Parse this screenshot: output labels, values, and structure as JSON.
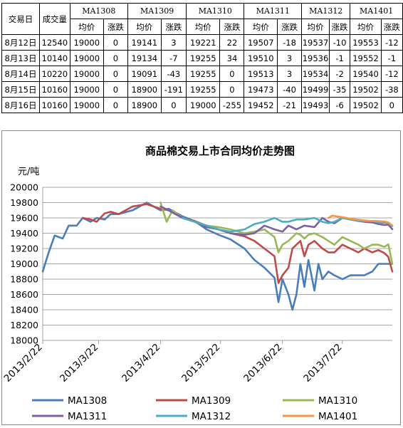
{
  "table": {
    "col_date": "交易日",
    "col_volume": "成交量",
    "contracts": [
      "MA1308",
      "MA1309",
      "MA1310",
      "MA1311",
      "MA1312",
      "MA1401"
    ],
    "sub_avg": "均价",
    "sub_change": "涨跌",
    "rows": [
      {
        "date": "8月12日",
        "volume": "12540",
        "cells": [
          "19000",
          "0",
          "19141",
          "3",
          "19221",
          "22",
          "19507",
          "-18",
          "19537",
          "-10",
          "19553",
          "-12"
        ]
      },
      {
        "date": "8月13日",
        "volume": "10140",
        "cells": [
          "19000",
          "0",
          "19134",
          "-7",
          "19255",
          "34",
          "19510",
          "3",
          "19536",
          "-1",
          "19552",
          "-1"
        ]
      },
      {
        "date": "8月14日",
        "volume": "10220",
        "cells": [
          "19000",
          "0",
          "19091",
          "-43",
          "19255",
          "0",
          "19513",
          "3",
          "19534",
          "-2",
          "19540",
          "-12"
        ]
      },
      {
        "date": "8月15日",
        "volume": "10160",
        "cells": [
          "19000",
          "0",
          "18900",
          "-191",
          "19255",
          "0",
          "19473",
          "-40",
          "19499",
          "-35",
          "19502",
          "-38"
        ]
      },
      {
        "date": "8月16日",
        "volume": "10160",
        "cells": [
          "19000",
          "0",
          "18900",
          "0",
          "19000",
          "-255",
          "19452",
          "-21",
          "19493",
          "-6",
          "19502",
          "0"
        ]
      }
    ]
  },
  "chart_data": {
    "type": "line",
    "title": "商品棉交易上市合同均价走势图",
    "ylabel": "元/吨",
    "xlabel": "",
    "ylim": [
      18000,
      20000
    ],
    "yticks": [
      18000,
      18200,
      18400,
      18600,
      18800,
      19000,
      19200,
      19400,
      19600,
      19800,
      20000
    ],
    "xlim": [
      "2013-02-22",
      "2013-08-16"
    ],
    "xticks": [
      "2013/2/22",
      "2013/3/22",
      "2013/4/22",
      "2013/5/22",
      "2013/6/22",
      "2013/7/22"
    ],
    "tick_dates": [
      "2013-02-22",
      "2013-03-22",
      "2013-04-22",
      "2013-05-22",
      "2013-06-22",
      "2013-07-22"
    ],
    "legend_position": "bottom",
    "series": [
      {
        "name": "MA1308",
        "color": "#4a7ebb",
        "x": [
          "2013-02-22",
          "2013-02-25",
          "2013-02-28",
          "2013-03-04",
          "2013-03-07",
          "2013-03-11",
          "2013-03-14",
          "2013-03-18",
          "2013-03-21",
          "2013-03-25",
          "2013-03-28",
          "2013-04-01",
          "2013-04-08",
          "2013-04-15",
          "2013-04-22",
          "2013-04-26",
          "2013-05-03",
          "2013-05-09",
          "2013-05-15",
          "2013-05-21",
          "2013-05-27",
          "2013-06-03",
          "2013-06-08",
          "2013-06-13",
          "2013-06-18",
          "2013-06-20",
          "2013-06-22",
          "2013-06-25",
          "2013-06-27",
          "2013-06-29",
          "2013-07-01",
          "2013-07-03",
          "2013-07-05",
          "2013-07-08",
          "2013-07-10",
          "2013-07-12",
          "2013-07-15",
          "2013-07-18",
          "2013-07-22",
          "2013-07-26",
          "2013-07-30",
          "2013-08-02",
          "2013-08-06",
          "2013-08-09",
          "2013-08-12",
          "2013-08-14",
          "2013-08-16"
        ],
        "y": [
          18900,
          19150,
          19370,
          19330,
          19500,
          19500,
          19600,
          19550,
          19600,
          19580,
          19650,
          19650,
          19700,
          19800,
          19700,
          19720,
          19620,
          19560,
          19450,
          19380,
          19320,
          19200,
          19050,
          18950,
          18820,
          18500,
          18800,
          18600,
          18400,
          18600,
          19000,
          18700,
          19050,
          18650,
          19000,
          18800,
          18900,
          18850,
          18800,
          18850,
          18850,
          18850,
          18900,
          19000,
          19000,
          19000,
          19000
        ]
      },
      {
        "name": "MA1309",
        "color": "#be4b48",
        "x": [
          "2013-03-14",
          "2013-03-18",
          "2013-03-21",
          "2013-03-25",
          "2013-03-28",
          "2013-04-01",
          "2013-04-08",
          "2013-04-15",
          "2013-04-22",
          "2013-04-26",
          "2013-05-03",
          "2013-05-09",
          "2013-05-15",
          "2013-05-21",
          "2013-05-27",
          "2013-06-03",
          "2013-06-08",
          "2013-06-13",
          "2013-06-18",
          "2013-06-20",
          "2013-06-22",
          "2013-06-25",
          "2013-06-27",
          "2013-06-29",
          "2013-07-01",
          "2013-07-03",
          "2013-07-05",
          "2013-07-08",
          "2013-07-12",
          "2013-07-15",
          "2013-07-18",
          "2013-07-22",
          "2013-07-26",
          "2013-07-30",
          "2013-08-02",
          "2013-08-06",
          "2013-08-09",
          "2013-08-12",
          "2013-08-14",
          "2013-08-16"
        ],
        "y": [
          19600,
          19580,
          19550,
          19660,
          19680,
          19650,
          19750,
          19780,
          19720,
          19700,
          19600,
          19560,
          19500,
          19450,
          19400,
          19360,
          19300,
          19200,
          19100,
          18750,
          18850,
          18950,
          19200,
          19250,
          19300,
          19100,
          19250,
          19300,
          19200,
          19150,
          19150,
          19250,
          19200,
          19150,
          19200,
          19150,
          19180,
          19141,
          19091,
          18900
        ]
      },
      {
        "name": "MA1310",
        "color": "#98b954",
        "x": [
          "2013-04-22",
          "2013-04-25",
          "2013-04-28",
          "2013-05-03",
          "2013-05-09",
          "2013-05-15",
          "2013-05-21",
          "2013-05-27",
          "2013-06-03",
          "2013-06-08",
          "2013-06-13",
          "2013-06-18",
          "2013-06-20",
          "2013-06-22",
          "2013-06-25",
          "2013-06-27",
          "2013-06-29",
          "2013-07-01",
          "2013-07-03",
          "2013-07-05",
          "2013-07-08",
          "2013-07-12",
          "2013-07-15",
          "2013-07-18",
          "2013-07-22",
          "2013-07-26",
          "2013-07-30",
          "2013-08-02",
          "2013-08-06",
          "2013-08-09",
          "2013-08-12",
          "2013-08-14",
          "2013-08-16"
        ],
        "y": [
          19800,
          19550,
          19700,
          19600,
          19550,
          19500,
          19480,
          19450,
          19400,
          19420,
          19450,
          19350,
          19150,
          19250,
          19300,
          19350,
          19400,
          19380,
          19330,
          19380,
          19400,
          19350,
          19300,
          19250,
          19350,
          19300,
          19250,
          19200,
          19250,
          19250,
          19221,
          19255,
          19000
        ]
      },
      {
        "name": "MA1311",
        "color": "#7d60a0",
        "x": [
          "2013-04-22",
          "2013-04-26",
          "2013-05-03",
          "2013-05-09",
          "2013-05-15",
          "2013-05-21",
          "2013-05-27",
          "2013-06-03",
          "2013-06-08",
          "2013-06-13",
          "2013-06-18",
          "2013-06-22",
          "2013-06-25",
          "2013-06-29",
          "2013-07-03",
          "2013-07-08",
          "2013-07-12",
          "2013-07-15",
          "2013-07-18",
          "2013-07-22",
          "2013-07-26",
          "2013-07-30",
          "2013-08-02",
          "2013-08-06",
          "2013-08-09",
          "2013-08-12",
          "2013-08-14",
          "2013-08-16"
        ],
        "y": [
          19750,
          19700,
          19600,
          19550,
          19480,
          19450,
          19400,
          19380,
          19400,
          19500,
          19450,
          19420,
          19500,
          19450,
          19500,
          19480,
          19600,
          19550,
          19530,
          19600,
          19580,
          19560,
          19550,
          19540,
          19520,
          19507,
          19513,
          19452
        ]
      },
      {
        "name": "MA1312",
        "color": "#4bacc6",
        "x": [
          "2013-05-03",
          "2013-05-09",
          "2013-05-15",
          "2013-05-21",
          "2013-05-27",
          "2013-06-03",
          "2013-06-08",
          "2013-06-13",
          "2013-06-18",
          "2013-06-22",
          "2013-06-25",
          "2013-06-29",
          "2013-07-03",
          "2013-07-08",
          "2013-07-12",
          "2013-07-15",
          "2013-07-18",
          "2013-07-22",
          "2013-07-26",
          "2013-07-30",
          "2013-08-02",
          "2013-08-06",
          "2013-08-09",
          "2013-08-12",
          "2013-08-14",
          "2013-08-16"
        ],
        "y": [
          19600,
          19550,
          19500,
          19450,
          19420,
          19450,
          19520,
          19550,
          19600,
          19550,
          19550,
          19580,
          19580,
          19600,
          19550,
          19530,
          19550,
          19600,
          19580,
          19560,
          19560,
          19560,
          19540,
          19537,
          19534,
          19493
        ]
      },
      {
        "name": "MA1401",
        "color": "#f79646",
        "x": [
          "2013-07-15",
          "2013-07-17",
          "2013-07-19",
          "2013-07-22",
          "2013-07-24",
          "2013-07-26",
          "2013-07-29",
          "2013-08-01",
          "2013-08-05",
          "2013-08-08",
          "2013-08-12",
          "2013-08-14",
          "2013-08-16"
        ],
        "y": [
          19600,
          19630,
          19620,
          19610,
          19600,
          19590,
          19580,
          19570,
          19560,
          19560,
          19553,
          19540,
          19502
        ]
      }
    ]
  }
}
